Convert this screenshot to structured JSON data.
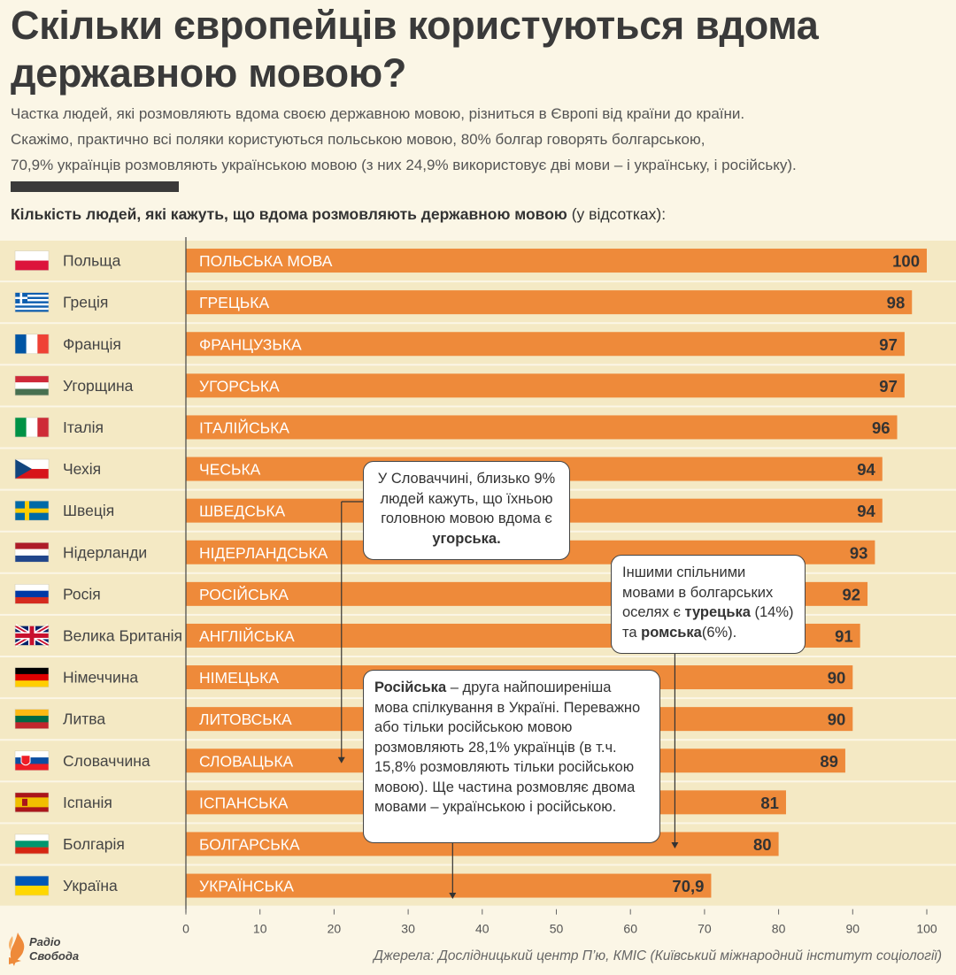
{
  "title": "Скільки європейців користуються вдома державною мовою?",
  "subtitle": {
    "line1": "Частка людей, які розмовляють вдома своєю державною мовою, різниться в Європі від країни до країни.",
    "line2": "Скажімо, практично всі поляки користуються польською мовою, 80% болгар говорять болгарською,",
    "line3": "70,9% українців розмовляють українською мовою (з них 24,9% використовує дві мови – і українську, і російську)."
  },
  "heading": {
    "bold": "Кількість людей, які кажуть, що вдома розмовляють державною мовою",
    "rest": " (у відсотках):"
  },
  "chart_data": {
    "type": "bar",
    "orientation": "horizontal",
    "categories": [
      "Польща",
      "Греція",
      "Франція",
      "Угорщина",
      "Італія",
      "Чехія",
      "Швеція",
      "Нідерланди",
      "Росія",
      "Велика Британія",
      "Німеччина",
      "Литва",
      "Словаччина",
      "Іспанія",
      "Болгарія",
      "Україна"
    ],
    "bar_labels": [
      "ПОЛЬСЬКА МОВА",
      "ГРЕЦЬКА",
      "ФРАНЦУЗЬКА",
      "УГОРСЬКА",
      "ІТАЛІЙСЬКА",
      "ЧЕСЬКА",
      "ШВЕДСЬКА",
      "НІДЕРЛАНДСЬКА",
      "РОСІЙСЬКА",
      "АНГЛІЙСЬКА",
      "НІМЕЦЬКА",
      "ЛИТОВСЬКА",
      "СЛОВАЦЬКА",
      "ІСПАНСЬКА",
      "БОЛГАРСЬКА",
      "УКРАЇНСЬКА"
    ],
    "values": [
      100,
      98,
      97,
      97,
      96,
      94,
      94,
      93,
      92,
      91,
      90,
      90,
      89,
      81,
      80,
      70.9
    ],
    "value_labels": [
      "100",
      "98",
      "97",
      "97",
      "96",
      "94",
      "94",
      "93",
      "92",
      "91",
      "90",
      "90",
      "89",
      "81",
      "80",
      "70,9"
    ],
    "flags": [
      "poland-flag",
      "greece-flag",
      "france-flag",
      "hungary-flag",
      "italy-flag",
      "czech-flag",
      "sweden-flag",
      "netherlands-flag",
      "russia-flag",
      "uk-flag",
      "germany-flag",
      "lithuania-flag",
      "slovakia-flag",
      "spain-flag",
      "bulgaria-flag",
      "ukraine-flag"
    ],
    "xlim": [
      0,
      100
    ],
    "xticks": [
      0,
      10,
      20,
      30,
      40,
      50,
      60,
      70,
      80,
      90,
      100
    ],
    "bar_color": "#ee8a3a",
    "stripe_color": "#f4e9c4"
  },
  "notes": {
    "slovakia": {
      "text": "У Словаччині, близько 9% людей кажуть, що їхньою головною мовою вдома є ",
      "bold": "угорська.",
      "arrow_value": 21
    },
    "bulgaria": {
      "text1": "Іншими спільними мовами в болгарських оселях є ",
      "bold1": "турецька",
      "text2": " (14%) та ",
      "bold2": "ромська",
      "text3": "(6%).",
      "arrow_value": 66
    },
    "ukraine": {
      "bold": "Російська",
      "text": " – друга найпоширеніша мова спілкування в Україні. Переважно або тільки російською мовою розмовляють 28,1% українців (в т.ч. 15,8% розмовляють тільки російською мовою). Ще частина розмовляє двома мовами – українською і російською.",
      "arrow_value": 36
    }
  },
  "logo": {
    "line1": "Радіо",
    "line2": "Свобода",
    "icon": "radio-svoboda-flame-icon"
  },
  "source": "Джерела: Дослідницький центр П’ю, КМІС (Київський міжнародний інститут соціології)",
  "colors": {
    "background": "#fbf6e6",
    "bar": "#ee8a3a",
    "stripe": "#f4e9c4",
    "text": "#3a3a3a"
  }
}
